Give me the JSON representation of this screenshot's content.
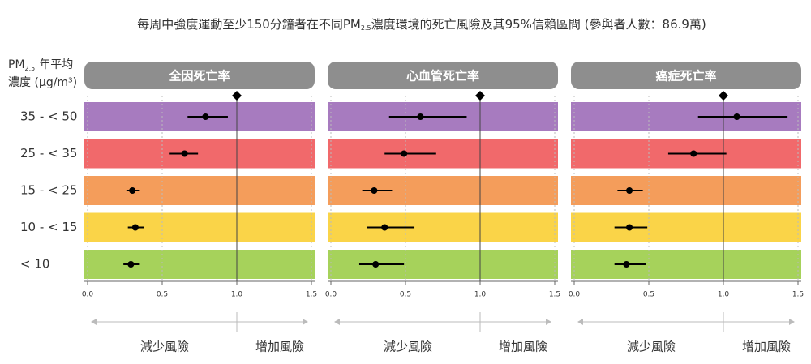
{
  "title_parts": [
    "每周中強度運動至少150分鐘者在不同PM",
    "2.5",
    "濃度環境的死亡風險及其95%信賴區間 (參與者人數：86.9萬)"
  ],
  "row_header": {
    "parts": [
      "PM",
      "2.5",
      "年平均",
      "濃度 (μg/m³)"
    ]
  },
  "categories": [
    "35 - < 50",
    "25 - < 35",
    "15 - < 25",
    "10 - < 15",
    "< 10"
  ],
  "category_colors": [
    "#a77bbf",
    "#f1696b",
    "#f49d5b",
    "#fad448",
    "#a6d25b"
  ],
  "chart_data": [
    {
      "type": "forest",
      "title": "全因死亡率",
      "values": [
        0.79,
        0.65,
        0.3,
        0.32,
        0.29
      ],
      "lower": [
        0.67,
        0.55,
        0.26,
        0.27,
        0.24
      ],
      "upper": [
        0.94,
        0.74,
        0.35,
        0.38,
        0.35
      ],
      "xlim": [
        0,
        1.5
      ],
      "xticks": [
        {
          "value": 0,
          "label": "0.0"
        },
        0.5,
        {
          "value": 1,
          "label": "1.0"
        },
        1.5
      ],
      "reference": 1,
      "left_label": "減少風險",
      "right_label": "增加風險"
    },
    {
      "type": "forest",
      "title": "心血管死亡率",
      "values": [
        0.6,
        0.49,
        0.29,
        0.36,
        0.3
      ],
      "lower": [
        0.39,
        0.36,
        0.21,
        0.24,
        0.19
      ],
      "upper": [
        0.91,
        0.7,
        0.41,
        0.56,
        0.49
      ],
      "xlim": [
        0,
        1.5
      ],
      "xticks": [
        {
          "value": 0,
          "label": "0.0"
        },
        0.5,
        {
          "value": 1,
          "label": "1.0"
        },
        1.5
      ],
      "reference": 1,
      "left_label": "減少風險",
      "right_label": "增加風險"
    },
    {
      "type": "forest",
      "title": "癌症死亡率",
      "values": [
        1.09,
        0.8,
        0.37,
        0.37,
        0.35
      ],
      "lower": [
        0.83,
        0.63,
        0.29,
        0.27,
        0.27
      ],
      "upper": [
        1.43,
        1.02,
        0.46,
        0.49,
        0.48
      ],
      "xlim": [
        0,
        1.5
      ],
      "xticks": [
        {
          "value": 0,
          "label": "0.0"
        },
        0.5,
        {
          "value": 1,
          "label": "1.0"
        },
        1.5
      ],
      "reference": 1,
      "left_label": "減少風險",
      "right_label": "增加風險"
    }
  ]
}
